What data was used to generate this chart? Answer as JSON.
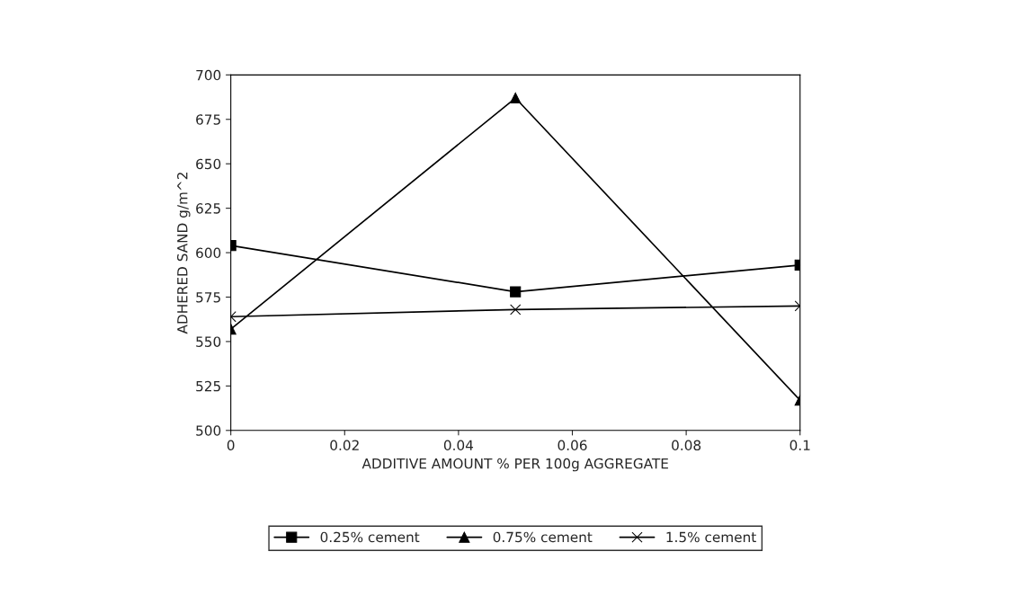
{
  "chart_data": {
    "type": "line",
    "xlabel": "ADDITIVE AMOUNT % PER 100g AGGREGATE",
    "ylabel": "ADHERED SAND g/m^2",
    "x": [
      0,
      0.05,
      0.1
    ],
    "series": [
      {
        "name": "0.25% cement",
        "color": "#000000",
        "marker": "square",
        "values": [
          604,
          578,
          593
        ]
      },
      {
        "name": "0.75% cement",
        "color": "#000000",
        "marker": "triangle",
        "values": [
          557,
          687,
          517
        ]
      },
      {
        "name": "1.5% cement",
        "color": "#000000",
        "marker": "cross",
        "values": [
          564,
          568,
          570
        ]
      }
    ],
    "xlim": [
      0,
      0.1
    ],
    "xticks": [
      0,
      0.02,
      0.04,
      0.06,
      0.08,
      0.1
    ],
    "ylim": [
      500,
      700
    ],
    "yticks": [
      500,
      525,
      550,
      575,
      600,
      625,
      650,
      675,
      700
    ],
    "grid": false,
    "legend": "bottom",
    "line_style": "solid"
  }
}
